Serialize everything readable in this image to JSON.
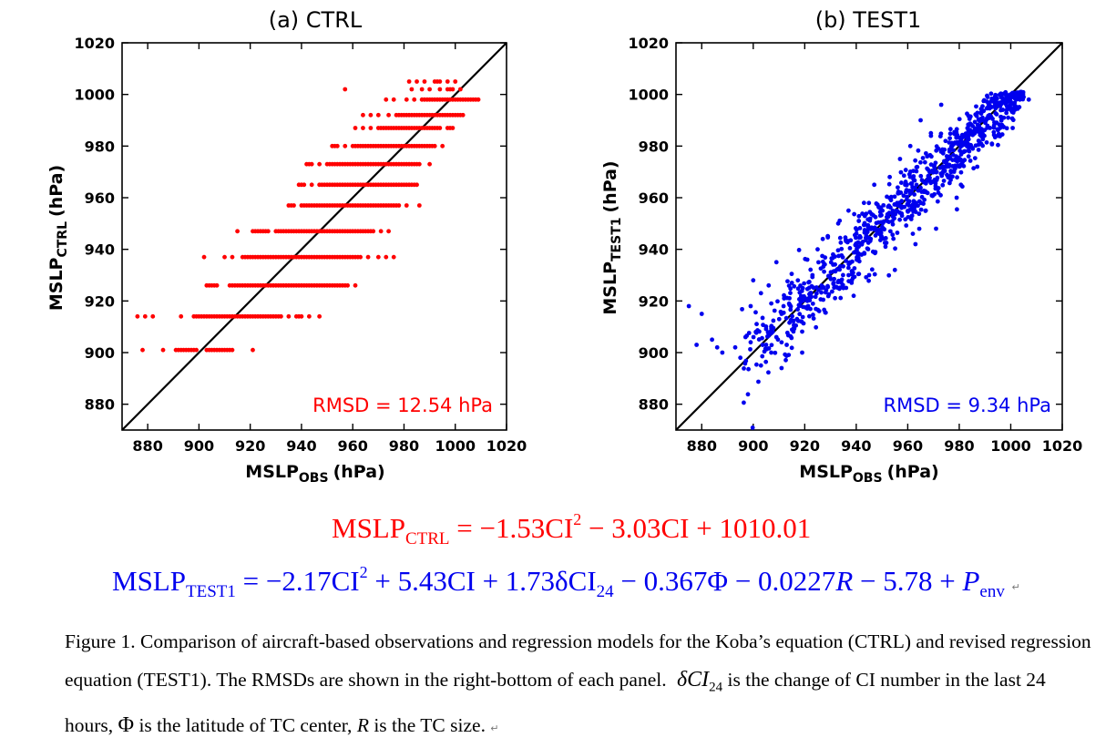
{
  "panels": [
    {
      "title": "(a) CTRL",
      "ylabel_main": "MSLP",
      "ylabel_sub": "CTRL",
      "ylabel_unit": "(hPa)",
      "xlabel_main": "MSLP",
      "xlabel_sub": "OBS",
      "xlabel_unit": "(hPa)",
      "rmsd_text": "RMSD = 12.54 hPa",
      "color": "#ff0000"
    },
    {
      "title": "(b) TEST1",
      "ylabel_main": "MSLP",
      "ylabel_sub": "TEST1",
      "ylabel_unit": "(hPa)",
      "xlabel_main": "MSLP",
      "xlabel_sub": "OBS",
      "xlabel_unit": "(hPa)",
      "rmsd_text": "RMSD = 9.34 hPa",
      "color": "#0000ee"
    }
  ],
  "equations": {
    "ctrl": {
      "color": "#ff0000",
      "lhs": "MSLP",
      "lhs_sub": "CTRL",
      "t1": "= −1.53CI",
      "sup": "2",
      "t2": " − 3.03CI + 1010.01"
    },
    "test1": {
      "color": "#0000ee",
      "lhs": "MSLP",
      "lhs_sub": "TEST1",
      "t1": "= −2.17CI",
      "sup": "2",
      "t2": " + 5.43CI + 1.73δCI",
      "sub24": "24",
      "t3": " − 0.367Φ − 0.0227",
      "r": "R",
      "t4": " − 5.78 + ",
      "p": "P",
      "p_sub": "env",
      "return_mark": "↵"
    }
  },
  "caption": {
    "part1": "Figure 1. Comparison of aircraft-based observations and regression models for the Koba’s equation (CTRL) and revised regression equation (TEST1). The RMSDs are shown in the right-bottom of each panel.",
    "delta": "δCI",
    "delta_sub": "24",
    "part2": " is the change of CI number in the last 24 hours,",
    "phi": "Φ",
    "part3": " is the latitude of TC center,",
    "r": "R",
    "part4": " is the TC size.",
    "return_mark": "↵"
  },
  "chart_data": [
    {
      "type": "scatter",
      "title": "(a) CTRL",
      "xlabel": "MSLP_OBS (hPa)",
      "ylabel": "MSLP_CTRL (hPa)",
      "xlim": [
        870,
        1020
      ],
      "ylim": [
        870,
        1020
      ],
      "x_ticks": [
        880,
        900,
        920,
        940,
        960,
        980,
        1000,
        1020
      ],
      "y_ticks": [
        880,
        900,
        920,
        940,
        960,
        980,
        1000,
        1020
      ],
      "reference_line": "y = x",
      "annotation": "RMSD = 12.54 hPa",
      "annotation_position": "bottom-right",
      "grid": false,
      "color": "#ff0000",
      "level_rows": [
        {
          "y": 1005,
          "x": [
            982,
            985,
            988,
            992,
            994,
            997,
            1000
          ]
        },
        {
          "y": 1002,
          "x": [
            957,
            983,
            987,
            990,
            994,
            997,
            999,
            1002
          ]
        },
        {
          "y": 998,
          "x": [
            973,
            976,
            981,
            984,
            987,
            989,
            991,
            993,
            995,
            997,
            999,
            1001,
            1003,
            1005,
            1007,
            1009
          ]
        },
        {
          "y": 992,
          "x": [
            964,
            967,
            970,
            974,
            977,
            979,
            981,
            983,
            985,
            987,
            989,
            991,
            993,
            995,
            997,
            999,
            1001,
            1003
          ]
        },
        {
          "y": 987,
          "x": [
            961,
            964,
            967,
            970,
            972,
            974,
            976,
            978,
            980,
            982,
            984,
            986,
            988,
            990,
            992,
            994,
            997,
            999
          ]
        },
        {
          "y": 980,
          "x": [
            952,
            954,
            957,
            960,
            962,
            964,
            966,
            968,
            970,
            972,
            974,
            976,
            978,
            980,
            982,
            984,
            986,
            988,
            990,
            992,
            995
          ]
        },
        {
          "y": 973,
          "x": [
            942,
            944,
            947,
            950,
            952,
            954,
            956,
            958,
            960,
            962,
            964,
            966,
            968,
            970,
            972,
            974,
            976,
            978,
            980,
            982,
            984,
            986,
            990
          ]
        },
        {
          "y": 965,
          "x": [
            939,
            941,
            944,
            947,
            949,
            951,
            953,
            955,
            957,
            959,
            961,
            963,
            965,
            967,
            969,
            971,
            973,
            975,
            977,
            979,
            981,
            983,
            985
          ]
        },
        {
          "y": 957,
          "x": [
            935,
            937,
            940,
            942,
            944,
            946,
            948,
            950,
            952,
            954,
            956,
            958,
            960,
            962,
            964,
            966,
            968,
            970,
            972,
            974,
            976,
            978,
            981,
            986
          ]
        },
        {
          "y": 947,
          "x": [
            915,
            921,
            923,
            925,
            927,
            930,
            932,
            934,
            936,
            938,
            940,
            942,
            944,
            946,
            948,
            950,
            952,
            954,
            956,
            958,
            960,
            962,
            964,
            966,
            968,
            971,
            974
          ]
        },
        {
          "y": 937,
          "x": [
            902,
            910,
            913,
            917,
            919,
            921,
            923,
            925,
            927,
            929,
            931,
            933,
            935,
            937,
            939,
            941,
            943,
            945,
            947,
            949,
            951,
            953,
            955,
            957,
            959,
            961,
            963,
            966,
            970,
            973,
            976
          ]
        },
        {
          "y": 926,
          "x": [
            903,
            905,
            907,
            912,
            914,
            916,
            918,
            920,
            922,
            924,
            926,
            928,
            930,
            932,
            934,
            936,
            938,
            940,
            942,
            944,
            946,
            948,
            950,
            952,
            954,
            956,
            958,
            961
          ]
        },
        {
          "y": 914,
          "x": [
            876,
            879,
            882,
            893,
            898,
            900,
            902,
            904,
            906,
            908,
            910,
            912,
            914,
            916,
            918,
            920,
            922,
            924,
            926,
            928,
            930,
            932,
            935,
            938,
            940,
            943,
            947
          ]
        },
        {
          "y": 901,
          "x": [
            878,
            886,
            891,
            893,
            895,
            897,
            899,
            903,
            905,
            907,
            909,
            911,
            913,
            921
          ]
        }
      ]
    },
    {
      "type": "scatter",
      "title": "(b) TEST1",
      "xlabel": "MSLP_OBS (hPa)",
      "ylabel": "MSLP_TEST1 (hPa)",
      "xlim": [
        870,
        1020
      ],
      "ylim": [
        870,
        1020
      ],
      "x_ticks": [
        880,
        900,
        920,
        940,
        960,
        980,
        1000,
        1020
      ],
      "y_ticks": [
        880,
        900,
        920,
        940,
        960,
        980,
        1000,
        1020
      ],
      "reference_line": "y = x",
      "annotation": "RMSD = 9.34 hPa",
      "annotation_position": "bottom-right",
      "grid": false,
      "color": "#0000ee",
      "points": [
        [
          875,
          918
        ],
        [
          880,
          915
        ],
        [
          878,
          903
        ],
        [
          884,
          905
        ],
        [
          886,
          902
        ],
        [
          888,
          900
        ],
        [
          893,
          902
        ],
        [
          895,
          898
        ],
        [
          897,
          906
        ],
        [
          899,
          904
        ],
        [
          901,
          908
        ],
        [
          903,
          895
        ],
        [
          905,
          903
        ],
        [
          907,
          900
        ],
        [
          909,
          906
        ],
        [
          911,
          894
        ],
        [
          913,
          903
        ],
        [
          899,
          918
        ],
        [
          903,
          923
        ],
        [
          906,
          926
        ],
        [
          900,
          928
        ],
        [
          909,
          935
        ],
        [
          912,
          921
        ],
        [
          919,
          900
        ],
        [
          921,
          920
        ],
        [
          917,
          913
        ],
        [
          923,
          930
        ],
        [
          927,
          944
        ],
        [
          931,
          938
        ],
        [
          935,
          925
        ],
        [
          939,
          922
        ],
        [
          941,
          951
        ],
        [
          945,
          930
        ],
        [
          949,
          946
        ],
        [
          955,
          932
        ],
        [
          959,
          965
        ],
        [
          963,
          942
        ],
        [
          967,
          955
        ],
        [
          971,
          948
        ],
        [
          975,
          972
        ],
        [
          979,
          960
        ],
        [
          983,
          982
        ],
        [
          987,
          972
        ],
        [
          991,
          999
        ],
        [
          995,
          984
        ],
        [
          999,
          991
        ],
        [
          1003,
          995
        ],
        [
          1007,
          998
        ],
        [
          973,
          996
        ],
        [
          969,
          985
        ],
        [
          965,
          990
        ],
        [
          961,
          980
        ],
        [
          957,
          975
        ],
        [
          953,
          968
        ],
        [
          947,
          965
        ],
        [
          943,
          958
        ],
        [
          937,
          955
        ],
        [
          933,
          950
        ],
        [
          929,
          945
        ],
        [
          925,
          940
        ],
        [
          921,
          936
        ],
        [
          915,
          927
        ],
        [
          911,
          915
        ],
        [
          907,
          910
        ],
        [
          1005,
          999
        ],
        [
          1001,
          993
        ]
      ],
      "cloud": {
        "description": "dense cloud of points along y = x from about 900 to 1000 hPa",
        "x_range": [
          895,
          1005
        ],
        "approx_count": 900
      }
    }
  ]
}
